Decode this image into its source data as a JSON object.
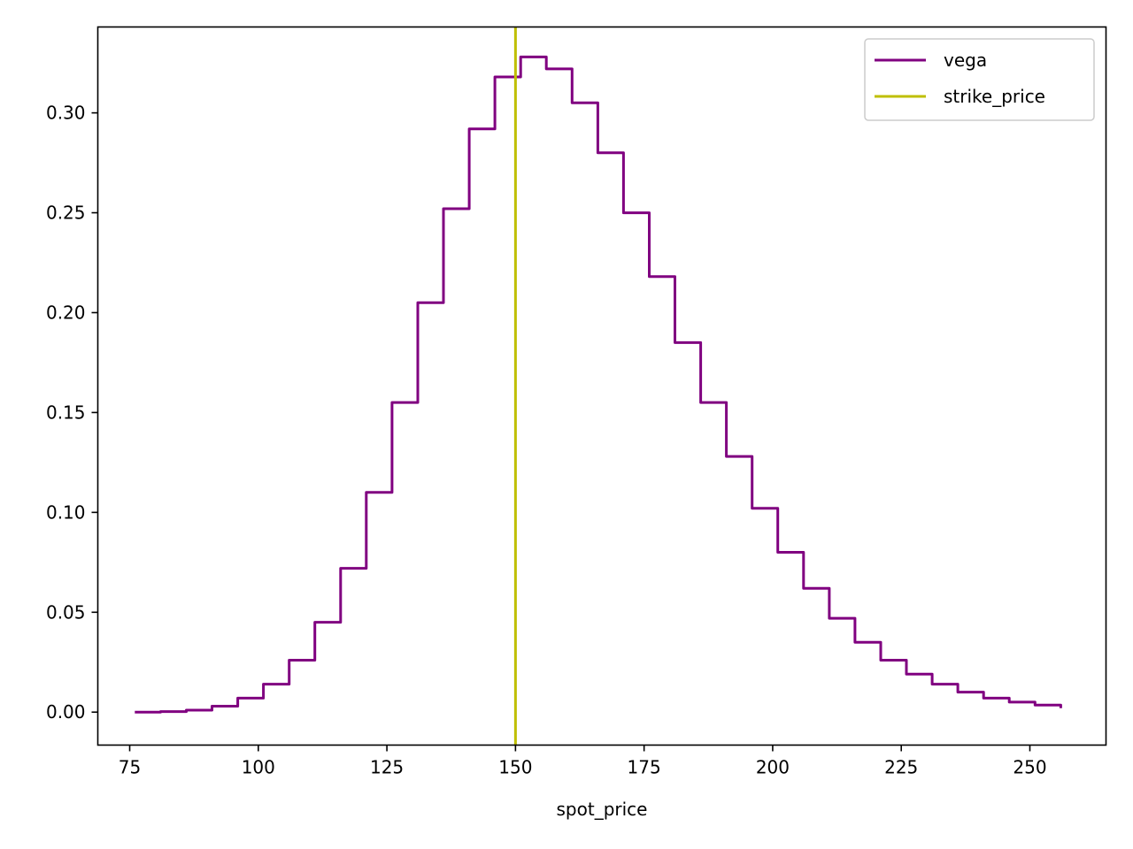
{
  "chart_data": {
    "type": "line",
    "title": "",
    "xlabel": "spot_price",
    "ylabel": "",
    "xlim": [
      68.8,
      264.8
    ],
    "ylim": [
      -0.0165,
      0.343
    ],
    "x_ticks": [
      {
        "value": 75,
        "label": "75"
      },
      {
        "value": 100,
        "label": "100"
      },
      {
        "value": 125,
        "label": "125"
      },
      {
        "value": 150,
        "label": "150"
      },
      {
        "value": 175,
        "label": "175"
      },
      {
        "value": 200,
        "label": "200"
      },
      {
        "value": 225,
        "label": "225"
      },
      {
        "value": 250,
        "label": "250"
      }
    ],
    "y_ticks": [
      {
        "value": 0.0,
        "label": "0.00"
      },
      {
        "value": 0.05,
        "label": "0.05"
      },
      {
        "value": 0.1,
        "label": "0.10"
      },
      {
        "value": 0.15,
        "label": "0.15"
      },
      {
        "value": 0.2,
        "label": "0.20"
      },
      {
        "value": 0.25,
        "label": "0.25"
      },
      {
        "value": 0.3,
        "label": "0.30"
      }
    ],
    "grid": false,
    "legend_position": "top-right",
    "series": [
      {
        "name": "vega",
        "color": "#800080",
        "style": "step",
        "x": [
          76,
          81,
          86,
          91,
          96,
          101,
          106,
          111,
          116,
          121,
          126,
          131,
          136,
          141,
          146,
          151,
          156,
          161,
          166,
          171,
          176,
          181,
          186,
          191,
          196,
          201,
          206,
          211,
          216,
          221,
          226,
          231,
          236,
          241,
          246,
          251,
          256
        ],
        "y": [
          0.0,
          0.0003,
          0.001,
          0.003,
          0.007,
          0.014,
          0.026,
          0.045,
          0.072,
          0.11,
          0.155,
          0.205,
          0.252,
          0.292,
          0.318,
          0.328,
          0.322,
          0.305,
          0.28,
          0.25,
          0.218,
          0.185,
          0.155,
          0.128,
          0.102,
          0.08,
          0.062,
          0.047,
          0.035,
          0.026,
          0.019,
          0.014,
          0.01,
          0.007,
          0.005,
          0.0035,
          0.002
        ]
      },
      {
        "name": "strike_price",
        "color": "#bfbf00",
        "style": "vline",
        "x_value": 150
      }
    ]
  }
}
